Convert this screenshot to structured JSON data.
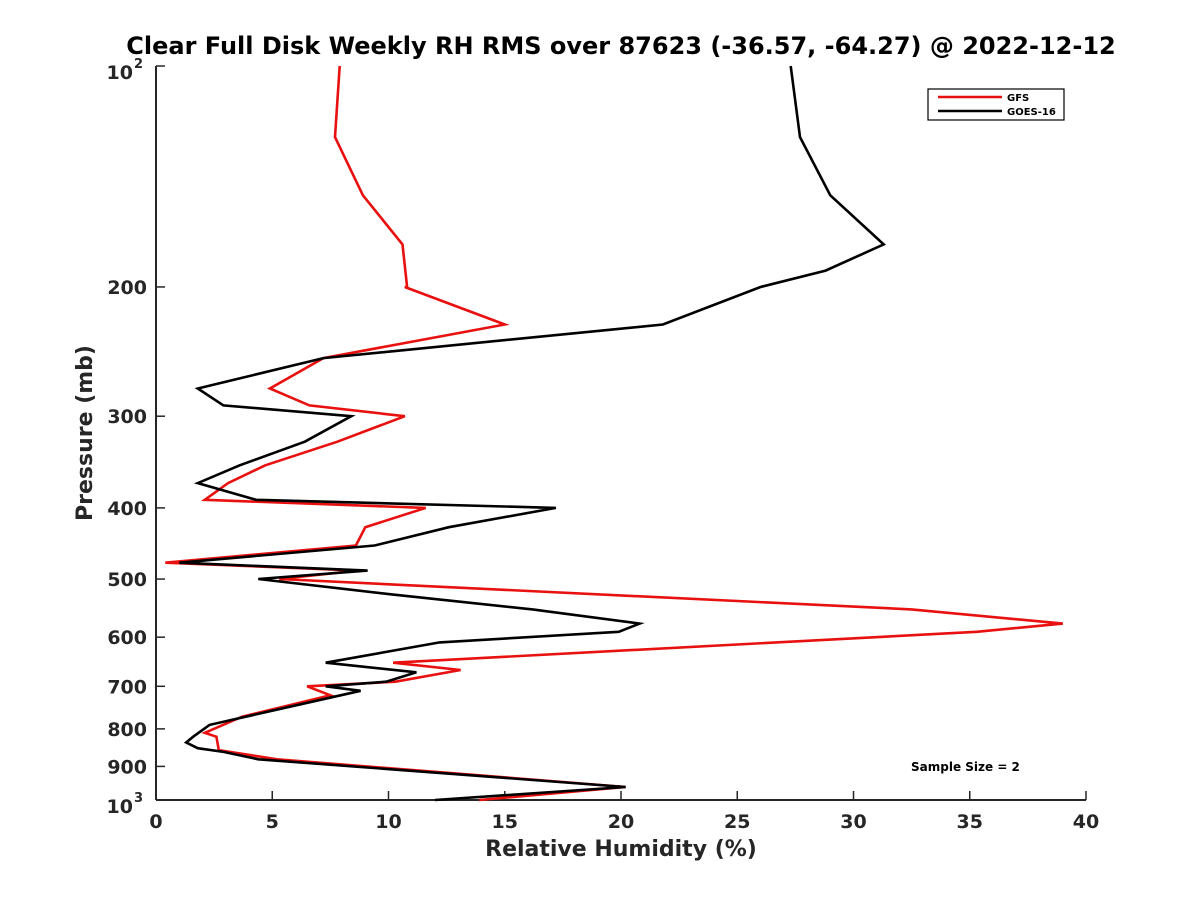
{
  "chart_data": {
    "type": "line",
    "title": "Clear Full Disk Weekly RH RMS over 87623 (-36.57, -64.27) @ 2022-12-12",
    "xlabel": "Relative Humidity (%)",
    "ylabel": "Pressure (mb)",
    "xlim": [
      0,
      40
    ],
    "ylim": [
      100,
      1000
    ],
    "y_scale": "log",
    "y_reversed": true,
    "grid": false,
    "legend_position": "top-right",
    "x_ticks": [
      {
        "value": 0,
        "label": "0"
      },
      {
        "value": 5,
        "label": "5"
      },
      {
        "value": 10,
        "label": "10"
      },
      {
        "value": 15,
        "label": "15"
      },
      {
        "value": 20,
        "label": "20"
      },
      {
        "value": 25,
        "label": "25"
      },
      {
        "value": 30,
        "label": "30"
      },
      {
        "value": 35,
        "label": "35"
      },
      {
        "value": 40,
        "label": "40"
      }
    ],
    "y_ticks": [
      {
        "value": 100,
        "base": "10",
        "exp": "2"
      },
      {
        "value": 200,
        "label": "200"
      },
      {
        "value": 300,
        "label": "300"
      },
      {
        "value": 400,
        "label": "400"
      },
      {
        "value": 500,
        "label": "500"
      },
      {
        "value": 600,
        "label": "600"
      },
      {
        "value": 700,
        "label": "700"
      },
      {
        "value": 800,
        "label": "800"
      },
      {
        "value": 900,
        "label": "900"
      },
      {
        "value": 1000,
        "base": "10",
        "exp": "3"
      }
    ],
    "series": [
      {
        "name": "GFS",
        "color": "#e8110f",
        "points": [
          [
            7.9,
            100
          ],
          [
            7.7,
            125
          ],
          [
            8.9,
            150
          ],
          [
            10.6,
            175
          ],
          [
            10.8,
            200
          ],
          [
            10.7,
            200
          ],
          [
            15.0,
            225
          ],
          [
            7.2,
            250
          ],
          [
            4.9,
            275
          ],
          [
            6.6,
            290
          ],
          [
            10.7,
            300
          ],
          [
            7.8,
            325
          ],
          [
            4.7,
            350
          ],
          [
            3.1,
            370
          ],
          [
            2.1,
            390
          ],
          [
            11.6,
            400
          ],
          [
            9.0,
            425
          ],
          [
            8.6,
            450
          ],
          [
            0.4,
            475
          ],
          [
            8.7,
            487
          ],
          [
            5.3,
            500
          ],
          [
            32.5,
            550
          ],
          [
            39.0,
            575
          ],
          [
            35.3,
            590
          ],
          [
            10.2,
            650
          ],
          [
            13.1,
            665
          ],
          [
            10.3,
            690
          ],
          [
            6.5,
            700
          ],
          [
            7.5,
            720
          ],
          [
            3.7,
            770
          ],
          [
            2.1,
            810
          ],
          [
            2.6,
            820
          ],
          [
            2.7,
            855
          ],
          [
            5.2,
            880
          ],
          [
            20.2,
            960
          ],
          [
            13.9,
            1000
          ]
        ]
      },
      {
        "name": "GOES-16",
        "color": "#000000",
        "points": [
          [
            27.3,
            100
          ],
          [
            27.7,
            125
          ],
          [
            29.0,
            150
          ],
          [
            31.3,
            175
          ],
          [
            28.8,
            190
          ],
          [
            26.0,
            200
          ],
          [
            21.8,
            225
          ],
          [
            7.2,
            250
          ],
          [
            1.8,
            275
          ],
          [
            2.9,
            290
          ],
          [
            8.4,
            300
          ],
          [
            6.4,
            325
          ],
          [
            3.6,
            350
          ],
          [
            1.8,
            370
          ],
          [
            4.3,
            390
          ],
          [
            17.2,
            400
          ],
          [
            12.6,
            425
          ],
          [
            9.4,
            450
          ],
          [
            1.0,
            475
          ],
          [
            9.1,
            487
          ],
          [
            4.4,
            500
          ],
          [
            10.2,
            525
          ],
          [
            16.2,
            550
          ],
          [
            20.8,
            575
          ],
          [
            19.9,
            590
          ],
          [
            12.2,
            610
          ],
          [
            7.3,
            650
          ],
          [
            11.2,
            670
          ],
          [
            9.9,
            690
          ],
          [
            7.3,
            700
          ],
          [
            8.8,
            710
          ],
          [
            7.1,
            730
          ],
          [
            2.3,
            790
          ],
          [
            1.6,
            820
          ],
          [
            1.3,
            835
          ],
          [
            1.8,
            850
          ],
          [
            2.9,
            860
          ],
          [
            4.4,
            880
          ],
          [
            20.2,
            960
          ],
          [
            12.0,
            1000
          ]
        ]
      }
    ],
    "annotation": "Sample Size = 2"
  }
}
